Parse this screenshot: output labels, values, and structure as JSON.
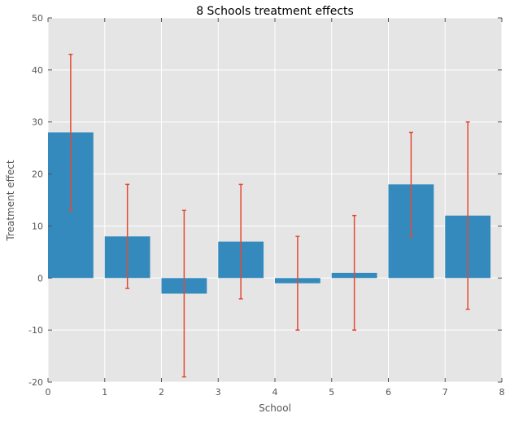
{
  "chart_data": {
    "type": "bar",
    "title": "8 Schools treatment effects",
    "xlabel": "School",
    "ylabel": "Treatment effect",
    "x": [
      0,
      1,
      2,
      3,
      4,
      5,
      6,
      7
    ],
    "values": [
      28,
      8,
      -3,
      7,
      -1,
      1,
      18,
      12
    ],
    "errors": [
      15,
      10,
      16,
      11,
      9,
      11,
      10,
      18
    ],
    "bar_width": 0.8,
    "xlim": [
      0,
      8
    ],
    "ylim": [
      -20,
      50
    ],
    "xticks": [
      0,
      1,
      2,
      3,
      4,
      5,
      6,
      7,
      8
    ],
    "yticks": [
      -20,
      -10,
      0,
      10,
      20,
      30,
      40,
      50
    ],
    "grid": true,
    "colors": {
      "bar": "#348ABD",
      "error": "#E24A33",
      "background": "#E5E5E5",
      "grid": "#FFFFFF"
    }
  }
}
